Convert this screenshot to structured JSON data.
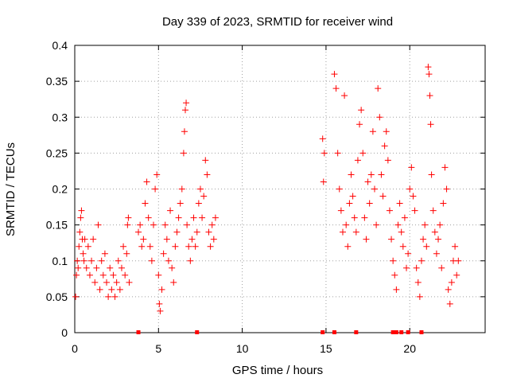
{
  "chart_data": {
    "type": "scatter",
    "title": "Day 339 of 2023, SRMTID for receiver wind",
    "xlabel": "GPS time / hours",
    "ylabel": "SRMTID / TECUs",
    "xlim": [
      0,
      24.5
    ],
    "ylim": [
      0,
      0.4
    ],
    "grid": true,
    "marker": "+",
    "color": "#ff0000",
    "x_ticks": [
      {
        "value": 0,
        "label": "0"
      },
      {
        "value": 5,
        "label": "5"
      },
      {
        "value": 10,
        "label": "10"
      },
      {
        "value": 15,
        "label": "15"
      },
      {
        "value": 20,
        "label": "20"
      }
    ],
    "y_ticks": [
      {
        "value": 0,
        "label": "0"
      },
      {
        "value": 0.05,
        "label": "0.05"
      },
      {
        "value": 0.1,
        "label": "0.1"
      },
      {
        "value": 0.15,
        "label": "0.15"
      },
      {
        "value": 0.2,
        "label": "0.2"
      },
      {
        "value": 0.25,
        "label": "0.25"
      },
      {
        "value": 0.3,
        "label": "0.3"
      },
      {
        "value": 0.35,
        "label": "0.35"
      },
      {
        "value": 0.4,
        "label": "0.4"
      }
    ],
    "zero_markers_x": [
      3.8,
      7.3,
      14.8,
      15.5,
      16.8,
      19.0,
      19.2,
      19.5,
      19.9,
      20.7
    ],
    "series": [
      {
        "name": "SRMTID",
        "points": [
          [
            0.05,
            0.05
          ],
          [
            0.1,
            0.08
          ],
          [
            0.15,
            0.1
          ],
          [
            0.2,
            0.09
          ],
          [
            0.25,
            0.12
          ],
          [
            0.3,
            0.14
          ],
          [
            0.35,
            0.16
          ],
          [
            0.4,
            0.17
          ],
          [
            0.45,
            0.13
          ],
          [
            0.5,
            0.11
          ],
          [
            0.55,
            0.1
          ],
          [
            0.6,
            0.13
          ],
          [
            0.7,
            0.09
          ],
          [
            0.8,
            0.12
          ],
          [
            0.9,
            0.08
          ],
          [
            1.0,
            0.1
          ],
          [
            1.1,
            0.13
          ],
          [
            1.2,
            0.07
          ],
          [
            1.3,
            0.09
          ],
          [
            1.4,
            0.15
          ],
          [
            1.5,
            0.06
          ],
          [
            1.6,
            0.1
          ],
          [
            1.7,
            0.08
          ],
          [
            1.8,
            0.11
          ],
          [
            1.9,
            0.07
          ],
          [
            2.0,
            0.05
          ],
          [
            2.1,
            0.09
          ],
          [
            2.2,
            0.06
          ],
          [
            2.3,
            0.08
          ],
          [
            2.4,
            0.05
          ],
          [
            2.5,
            0.07
          ],
          [
            2.6,
            0.1
          ],
          [
            2.7,
            0.06
          ],
          [
            2.8,
            0.09
          ],
          [
            2.9,
            0.12
          ],
          [
            3.0,
            0.08
          ],
          [
            3.1,
            0.11
          ],
          [
            3.15,
            0.15
          ],
          [
            3.2,
            0.16
          ],
          [
            3.25,
            0.07
          ],
          [
            3.8,
            0.14
          ],
          [
            3.9,
            0.15
          ],
          [
            4.0,
            0.12
          ],
          [
            4.1,
            0.13
          ],
          [
            4.2,
            0.18
          ],
          [
            4.3,
            0.21
          ],
          [
            4.4,
            0.16
          ],
          [
            4.5,
            0.12
          ],
          [
            4.6,
            0.1
          ],
          [
            4.7,
            0.15
          ],
          [
            4.8,
            0.2
          ],
          [
            4.9,
            0.22
          ],
          [
            5.0,
            0.08
          ],
          [
            5.05,
            0.04
          ],
          [
            5.1,
            0.03
          ],
          [
            5.2,
            0.06
          ],
          [
            5.3,
            0.11
          ],
          [
            5.4,
            0.15
          ],
          [
            5.5,
            0.13
          ],
          [
            5.6,
            0.1
          ],
          [
            5.7,
            0.17
          ],
          [
            5.8,
            0.09
          ],
          [
            5.9,
            0.07
          ],
          [
            6.0,
            0.12
          ],
          [
            6.1,
            0.14
          ],
          [
            6.2,
            0.16
          ],
          [
            6.3,
            0.18
          ],
          [
            6.4,
            0.2
          ],
          [
            6.5,
            0.25
          ],
          [
            6.55,
            0.28
          ],
          [
            6.6,
            0.31
          ],
          [
            6.65,
            0.32
          ],
          [
            6.7,
            0.15
          ],
          [
            6.8,
            0.12
          ],
          [
            6.9,
            0.1
          ],
          [
            7.0,
            0.13
          ],
          [
            7.1,
            0.16
          ],
          [
            7.2,
            0.12
          ],
          [
            7.3,
            0.14
          ],
          [
            7.4,
            0.18
          ],
          [
            7.5,
            0.2
          ],
          [
            7.6,
            0.16
          ],
          [
            7.7,
            0.19
          ],
          [
            7.8,
            0.24
          ],
          [
            7.9,
            0.22
          ],
          [
            8.0,
            0.14
          ],
          [
            8.1,
            0.12
          ],
          [
            8.2,
            0.15
          ],
          [
            8.3,
            0.13
          ],
          [
            8.4,
            0.16
          ],
          [
            14.8,
            0.27
          ],
          [
            14.85,
            0.21
          ],
          [
            14.9,
            0.25
          ],
          [
            15.5,
            0.36
          ],
          [
            15.6,
            0.34
          ],
          [
            15.7,
            0.25
          ],
          [
            15.8,
            0.2
          ],
          [
            15.9,
            0.17
          ],
          [
            16.0,
            0.14
          ],
          [
            16.1,
            0.33
          ],
          [
            16.2,
            0.15
          ],
          [
            16.3,
            0.12
          ],
          [
            16.4,
            0.18
          ],
          [
            16.5,
            0.22
          ],
          [
            16.6,
            0.19
          ],
          [
            16.7,
            0.16
          ],
          [
            16.8,
            0.14
          ],
          [
            16.9,
            0.24
          ],
          [
            17.0,
            0.29
          ],
          [
            17.1,
            0.31
          ],
          [
            17.2,
            0.25
          ],
          [
            17.3,
            0.16
          ],
          [
            17.4,
            0.13
          ],
          [
            17.5,
            0.21
          ],
          [
            17.6,
            0.18
          ],
          [
            17.7,
            0.22
          ],
          [
            17.8,
            0.28
          ],
          [
            17.9,
            0.2
          ],
          [
            18.0,
            0.15
          ],
          [
            18.1,
            0.34
          ],
          [
            18.2,
            0.3
          ],
          [
            18.3,
            0.22
          ],
          [
            18.4,
            0.19
          ],
          [
            18.5,
            0.26
          ],
          [
            18.6,
            0.28
          ],
          [
            18.7,
            0.24
          ],
          [
            18.8,
            0.17
          ],
          [
            18.9,
            0.13
          ],
          [
            19.0,
            0.1
          ],
          [
            19.1,
            0.08
          ],
          [
            19.2,
            0.06
          ],
          [
            19.3,
            0.15
          ],
          [
            19.4,
            0.18
          ],
          [
            19.5,
            0.14
          ],
          [
            19.6,
            0.12
          ],
          [
            19.7,
            0.16
          ],
          [
            19.8,
            0.09
          ],
          [
            19.9,
            0.11
          ],
          [
            20.0,
            0.2
          ],
          [
            20.1,
            0.23
          ],
          [
            20.2,
            0.19
          ],
          [
            20.3,
            0.17
          ],
          [
            20.4,
            0.09
          ],
          [
            20.5,
            0.07
          ],
          [
            20.6,
            0.05
          ],
          [
            20.7,
            0.1
          ],
          [
            20.8,
            0.13
          ],
          [
            20.9,
            0.15
          ],
          [
            21.0,
            0.12
          ],
          [
            21.1,
            0.37
          ],
          [
            21.15,
            0.36
          ],
          [
            21.2,
            0.33
          ],
          [
            21.25,
            0.29
          ],
          [
            21.3,
            0.22
          ],
          [
            21.4,
            0.17
          ],
          [
            21.5,
            0.14
          ],
          [
            21.6,
            0.11
          ],
          [
            21.7,
            0.13
          ],
          [
            21.8,
            0.15
          ],
          [
            21.9,
            0.09
          ],
          [
            22.0,
            0.18
          ],
          [
            22.1,
            0.23
          ],
          [
            22.2,
            0.2
          ],
          [
            22.3,
            0.06
          ],
          [
            22.4,
            0.04
          ],
          [
            22.5,
            0.07
          ],
          [
            22.6,
            0.1
          ],
          [
            22.7,
            0.12
          ],
          [
            22.8,
            0.08
          ],
          [
            22.9,
            0.1
          ]
        ]
      }
    ]
  }
}
